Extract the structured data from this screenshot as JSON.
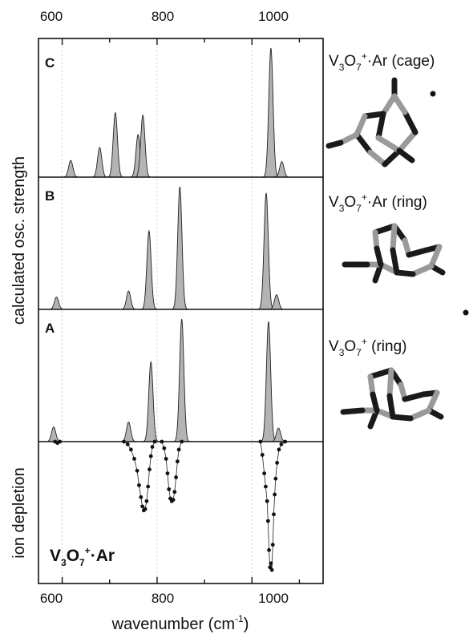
{
  "chart_data": {
    "type": "area",
    "xlabel": "wavenumber (cm",
    "xlabel_sup": "-1",
    "xlabel_end": ")",
    "xlim": [
      550,
      1150
    ],
    "xticks": [
      "600",
      "800",
      "1000"
    ],
    "xtick_values": [
      600,
      800,
      1000
    ],
    "grid": true,
    "ylabel_calc": "calculated osc. strength",
    "ylabel_exp": "ion depletion",
    "panels": [
      {
        "label": "C",
        "molecule": {
          "p1": "V",
          "s1": "3",
          "p2": "O",
          "s2": "7",
          "sup": "+",
          "p3": "·Ar (cage)"
        },
        "peaks": [
          {
            "x": 618,
            "h": 0.13
          },
          {
            "x": 679,
            "h": 0.23
          },
          {
            "x": 712,
            "h": 0.5
          },
          {
            "x": 760,
            "h": 0.33
          },
          {
            "x": 770,
            "h": 0.48
          },
          {
            "x": 1040,
            "h": 1.0
          },
          {
            "x": 1063,
            "h": 0.12
          }
        ]
      },
      {
        "label": "B",
        "molecule": {
          "p1": "V",
          "s1": "3",
          "p2": "O",
          "s2": "7",
          "sup": "+",
          "p3": "·Ar (ring)"
        },
        "peaks": [
          {
            "x": 588,
            "h": 0.1
          },
          {
            "x": 740,
            "h": 0.15
          },
          {
            "x": 783,
            "h": 0.64
          },
          {
            "x": 848,
            "h": 1.0
          },
          {
            "x": 1030,
            "h": 0.95
          },
          {
            "x": 1052,
            "h": 0.12
          }
        ]
      },
      {
        "label": "A",
        "molecule": {
          "p1": "V",
          "s1": "3",
          "p2": "O",
          "s2": "7",
          "sup": "+",
          "p3": " (ring)"
        },
        "peaks": [
          {
            "x": 582,
            "h": 0.12
          },
          {
            "x": 740,
            "h": 0.16
          },
          {
            "x": 787,
            "h": 0.65
          },
          {
            "x": 852,
            "h": 1.0
          },
          {
            "x": 1035,
            "h": 0.98
          },
          {
            "x": 1056,
            "h": 0.11
          }
        ]
      }
    ],
    "experiment": {
      "label": {
        "p1": "V",
        "s1": "3",
        "p2": "O",
        "s2": "7",
        "sup": "+",
        "p3": "·Ar"
      },
      "x": [
        585,
        590,
        595,
        730,
        738,
        745,
        752,
        758,
        762,
        766,
        769,
        772,
        775,
        778,
        781,
        784,
        787,
        790,
        795,
        810,
        815,
        819,
        822,
        825,
        828,
        831,
        834,
        837,
        840,
        843,
        846,
        852,
        1018,
        1022,
        1026,
        1029,
        1032,
        1034,
        1036,
        1038,
        1040,
        1042,
        1044,
        1046,
        1048,
        1050,
        1053,
        1057,
        1062,
        1070
      ],
      "y": [
        0.0,
        -0.01,
        0.0,
        0.0,
        -0.02,
        -0.06,
        -0.13,
        -0.22,
        -0.33,
        -0.42,
        -0.49,
        -0.52,
        -0.51,
        -0.45,
        -0.34,
        -0.21,
        -0.11,
        -0.04,
        0.0,
        0.0,
        -0.05,
        -0.13,
        -0.24,
        -0.36,
        -0.43,
        -0.45,
        -0.44,
        -0.38,
        -0.27,
        -0.15,
        -0.06,
        0.0,
        0.0,
        -0.1,
        -0.24,
        -0.34,
        -0.45,
        -0.6,
        -0.82,
        -0.95,
        -0.92,
        -0.97,
        -0.78,
        -0.55,
        -0.4,
        -0.28,
        -0.16,
        -0.06,
        -0.02,
        0.0
      ]
    }
  }
}
